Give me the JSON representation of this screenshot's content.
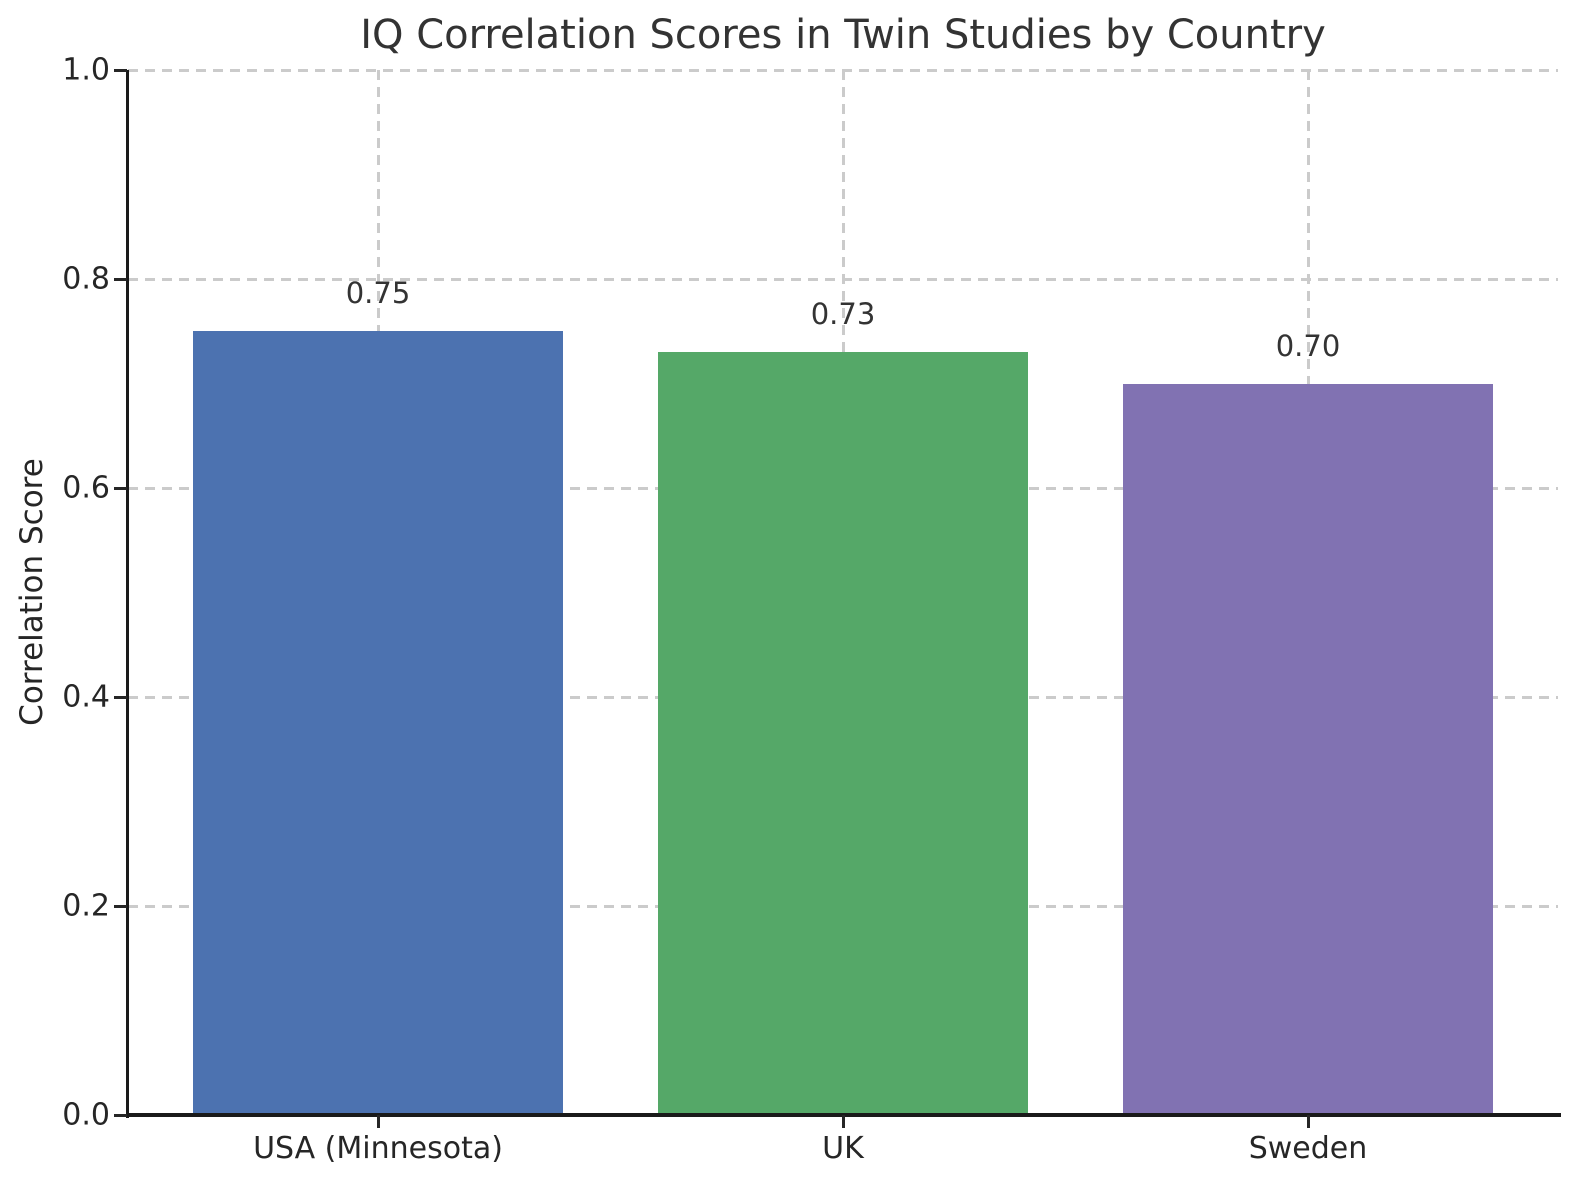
{
  "chart_data": {
    "type": "bar",
    "title": "IQ Correlation Scores in Twin Studies by Country",
    "xlabel": "",
    "ylabel": "Correlation Score",
    "categories": [
      "USA (Minnesota)",
      "UK",
      "Sweden"
    ],
    "values": [
      0.75,
      0.73,
      0.7
    ],
    "value_labels": [
      "0.75",
      "0.73",
      "0.70"
    ],
    "bar_colors": [
      "#4C72B0",
      "#55A868",
      "#8172B2"
    ],
    "ylim": [
      0.0,
      1.0
    ],
    "yticks": [
      0.0,
      0.2,
      0.4,
      0.6,
      0.8,
      1.0
    ],
    "ytick_labels": [
      "0.0",
      "0.2",
      "0.4",
      "0.6",
      "0.8",
      "1.0"
    ],
    "grid": {
      "visible": true,
      "style": "dashed",
      "color": "#cbcbcb",
      "axes": "both"
    },
    "legend": {
      "visible": false
    }
  },
  "style": {
    "background": "#ffffff",
    "title_color": "#333333",
    "text_color": "#262626",
    "spine_color": "#1a1a1a",
    "grid_color": "#cbcbcb"
  }
}
